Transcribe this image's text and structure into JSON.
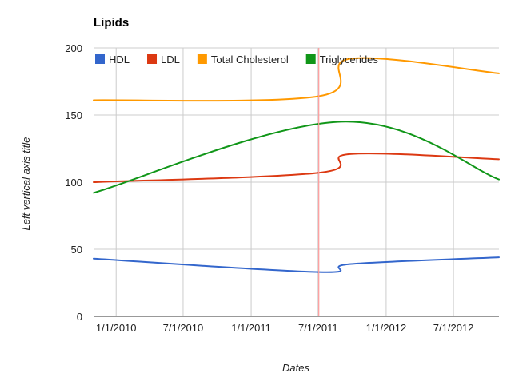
{
  "chart_data": {
    "type": "line",
    "title": "Lipids",
    "xlabel": "Dates",
    "ylabel": "Left vertical axis title",
    "ylim": [
      0,
      200
    ],
    "y_ticks": [
      "0",
      "50",
      "100",
      "150",
      "200"
    ],
    "x_range": [
      "2009-11-01",
      "2012-11-01"
    ],
    "x_ticks": [
      {
        "date": "2010-01-01",
        "label": "1/1/2010"
      },
      {
        "date": "2010-07-01",
        "label": "7/1/2010"
      },
      {
        "date": "2011-01-01",
        "label": "1/1/2011"
      },
      {
        "date": "2011-07-01",
        "label": "7/1/2011"
      },
      {
        "date": "2012-01-01",
        "label": "1/1/2012"
      },
      {
        "date": "2012-07-01",
        "label": "7/1/2012"
      }
    ],
    "grid": true,
    "legend_position": "top",
    "annotation_line": {
      "date": "2011-07-03",
      "color": "#ff9999"
    },
    "series": [
      {
        "name": "HDL",
        "color": "#3366cc",
        "x": [
          "2009-11-01",
          "2011-07-03",
          "2011-09-28",
          "2012-11-01"
        ],
        "values": [
          43,
          33,
          39,
          44
        ]
      },
      {
        "name": "LDL",
        "color": "#dc3912",
        "x": [
          "2009-11-01",
          "2011-07-03",
          "2011-09-28",
          "2012-11-01"
        ],
        "values": [
          100,
          107,
          121,
          117
        ]
      },
      {
        "name": "Total Cholesterol",
        "color": "#ff9900",
        "x": [
          "2009-11-01",
          "2011-07-03",
          "2011-09-28",
          "2012-11-01"
        ],
        "values": [
          161,
          164,
          192,
          181
        ]
      },
      {
        "name": "Triglycerides",
        "color": "#109618",
        "x": [
          "2009-11-01",
          "2011-09-01",
          "2012-11-01"
        ],
        "values": [
          92,
          145,
          102
        ]
      }
    ]
  }
}
